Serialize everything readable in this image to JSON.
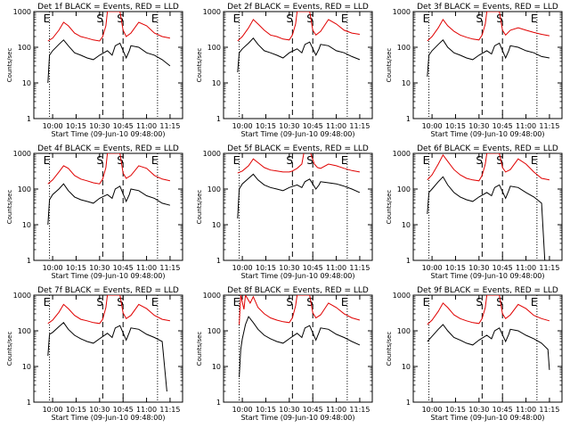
{
  "figure": {
    "ylabel": "Counts/sec",
    "xlabel": "Start Time (09-Jun-10 09:48:00)",
    "xticks": [
      "10:00",
      "10:15",
      "10:30",
      "10:45",
      "11:00",
      "11:15"
    ],
    "xtick_minutes": [
      0,
      15,
      30,
      45,
      60,
      75
    ],
    "yticks": [
      "1",
      "10",
      "100",
      "1000"
    ],
    "yticks_values": [
      1,
      10,
      100,
      1000
    ],
    "colors": {
      "events": "#000000",
      "lld": "#e00000"
    },
    "markers": [
      {
        "label": "E",
        "minute": -2,
        "style": "dotted"
      },
      {
        "label": "S",
        "minute": 32,
        "style": "dashed"
      },
      {
        "label": "S",
        "minute": 45,
        "style": "dashed"
      },
      {
        "label": "E",
        "minute": 67,
        "style": "dotted"
      }
    ]
  },
  "chart_data": [
    {
      "type": "line",
      "title": "Det 1f BLACK = Events, RED = LLD",
      "xlim_minutes": [
        -12,
        83
      ],
      "ylim": [
        1,
        1000
      ],
      "yscale": "log",
      "series": [
        {
          "color": "#e00000",
          "x": [
            -3,
            0,
            4,
            7,
            10,
            14,
            18,
            22,
            26,
            30,
            32,
            34,
            35,
            37,
            40,
            43,
            45,
            47,
            50,
            55,
            60,
            65,
            70,
            75
          ],
          "values": [
            150,
            180,
            300,
            500,
            400,
            250,
            200,
            180,
            160,
            150,
            200,
            400,
            1000,
            1000,
            1000,
            1000,
            300,
            200,
            250,
            500,
            400,
            250,
            200,
            180
          ]
        },
        {
          "color": "#000000",
          "x": [
            -3,
            -2,
            0,
            4,
            7,
            10,
            14,
            18,
            22,
            26,
            30,
            35,
            38,
            40,
            43,
            47,
            49,
            50,
            55,
            60,
            65,
            70,
            75
          ],
          "values": [
            10,
            60,
            80,
            120,
            160,
            110,
            70,
            60,
            50,
            45,
            60,
            80,
            60,
            110,
            130,
            50,
            80,
            110,
            100,
            70,
            60,
            45,
            30
          ]
        }
      ]
    },
    {
      "type": "line",
      "title": "Det 2f BLACK = Events, RED = LLD",
      "xlim_minutes": [
        -12,
        83
      ],
      "ylim": [
        1,
        1000
      ],
      "yscale": "log",
      "series": [
        {
          "color": "#e00000",
          "x": [
            -3,
            0,
            4,
            7,
            10,
            14,
            18,
            22,
            26,
            30,
            32,
            34,
            35,
            37,
            40,
            43,
            45,
            47,
            50,
            55,
            60,
            65,
            70,
            75
          ],
          "values": [
            150,
            200,
            350,
            600,
            450,
            300,
            220,
            200,
            170,
            160,
            220,
            450,
            1000,
            1000,
            1000,
            1000,
            300,
            220,
            280,
            600,
            450,
            300,
            250,
            230
          ]
        },
        {
          "color": "#000000",
          "x": [
            -3,
            -2,
            0,
            4,
            7,
            10,
            14,
            18,
            22,
            26,
            30,
            35,
            38,
            40,
            43,
            47,
            49,
            50,
            55,
            60,
            65,
            70,
            75
          ],
          "values": [
            20,
            70,
            90,
            130,
            180,
            120,
            80,
            70,
            60,
            50,
            70,
            90,
            70,
            120,
            140,
            60,
            90,
            120,
            110,
            80,
            70,
            55,
            45
          ]
        }
      ]
    },
    {
      "type": "line",
      "title": "Det 3f BLACK = Events, RED = LLD",
      "xlim_minutes": [
        -12,
        83
      ],
      "ylim": [
        1,
        1000
      ],
      "yscale": "log",
      "series": [
        {
          "color": "#e00000",
          "x": [
            -3,
            0,
            4,
            7,
            10,
            14,
            18,
            22,
            26,
            30,
            32,
            34,
            35,
            37,
            40,
            43,
            45,
            47,
            50,
            55,
            60,
            65,
            70,
            75
          ],
          "values": [
            150,
            200,
            350,
            600,
            400,
            280,
            220,
            190,
            170,
            160,
            220,
            450,
            1000,
            1000,
            1000,
            1000,
            300,
            220,
            300,
            350,
            300,
            260,
            230,
            210
          ]
        },
        {
          "color": "#000000",
          "x": [
            -3,
            -2,
            0,
            4,
            7,
            10,
            14,
            18,
            22,
            26,
            30,
            35,
            38,
            40,
            43,
            47,
            49,
            50,
            55,
            60,
            65,
            70,
            75
          ],
          "values": [
            15,
            60,
            80,
            120,
            160,
            100,
            70,
            60,
            50,
            45,
            60,
            80,
            65,
            110,
            130,
            50,
            80,
            110,
            100,
            80,
            70,
            55,
            50
          ]
        }
      ]
    },
    {
      "type": "line",
      "title": "Det 4f BLACK = Events, RED = LLD",
      "xlim_minutes": [
        -12,
        83
      ],
      "ylim": [
        1,
        1000
      ],
      "yscale": "log",
      "series": [
        {
          "color": "#e00000",
          "x": [
            -3,
            0,
            4,
            7,
            10,
            14,
            18,
            22,
            26,
            30,
            32,
            34,
            35,
            37,
            40,
            43,
            45,
            47,
            50,
            55,
            60,
            65,
            70,
            75
          ],
          "values": [
            140,
            180,
            300,
            450,
            380,
            240,
            190,
            170,
            150,
            140,
            190,
            400,
            1000,
            1000,
            1000,
            1000,
            280,
            200,
            240,
            450,
            380,
            240,
            190,
            170
          ]
        },
        {
          "color": "#000000",
          "x": [
            -3,
            -2,
            0,
            4,
            7,
            10,
            14,
            18,
            22,
            26,
            30,
            35,
            38,
            40,
            43,
            47,
            49,
            50,
            55,
            60,
            65,
            70,
            75
          ],
          "values": [
            10,
            50,
            70,
            100,
            140,
            90,
            60,
            50,
            45,
            40,
            55,
            70,
            55,
            100,
            120,
            45,
            70,
            100,
            90,
            65,
            55,
            40,
            35
          ]
        }
      ]
    },
    {
      "type": "line",
      "title": "Det 5f BLACK = Events, RED = LLD",
      "xlim_minutes": [
        -12,
        83
      ],
      "ylim": [
        1,
        1000
      ],
      "yscale": "log",
      "series": [
        {
          "color": "#e00000",
          "x": [
            -3,
            0,
            4,
            7,
            10,
            14,
            18,
            22,
            26,
            30,
            32,
            35,
            38,
            40,
            42,
            44,
            46,
            48,
            50,
            55,
            60,
            65,
            70,
            75
          ],
          "values": [
            280,
            320,
            450,
            700,
            550,
            400,
            340,
            320,
            300,
            300,
            320,
            380,
            500,
            1500,
            2000,
            900,
            500,
            400,
            380,
            500,
            450,
            380,
            330,
            300
          ]
        },
        {
          "color": "#000000",
          "x": [
            -3,
            -2,
            0,
            4,
            7,
            10,
            14,
            18,
            22,
            26,
            30,
            35,
            38,
            40,
            43,
            47,
            49,
            50,
            55,
            60,
            65,
            70,
            75
          ],
          "values": [
            15,
            100,
            140,
            200,
            260,
            180,
            130,
            110,
            100,
            90,
            110,
            130,
            110,
            160,
            190,
            100,
            130,
            160,
            150,
            140,
            120,
            100,
            80
          ]
        }
      ]
    },
    {
      "type": "line",
      "title": "Det 6f BLACK = Events, RED = LLD",
      "xlim_minutes": [
        -12,
        83
      ],
      "ylim": [
        1,
        1000
      ],
      "yscale": "log",
      "series": [
        {
          "color": "#e00000",
          "x": [
            -3,
            0,
            4,
            7,
            10,
            14,
            18,
            22,
            26,
            30,
            32,
            34,
            35,
            37,
            40,
            43,
            45,
            47,
            50,
            55,
            60,
            65,
            70,
            75
          ],
          "values": [
            180,
            250,
            500,
            900,
            600,
            350,
            250,
            200,
            180,
            170,
            240,
            500,
            1000,
            1000,
            1000,
            1000,
            400,
            300,
            350,
            700,
            500,
            300,
            200,
            180
          ]
        },
        {
          "color": "#000000",
          "x": [
            -3,
            -2,
            0,
            4,
            7,
            10,
            14,
            18,
            22,
            26,
            30,
            35,
            38,
            40,
            43,
            47,
            49,
            50,
            55,
            60,
            65,
            70,
            72
          ],
          "values": [
            20,
            80,
            100,
            160,
            220,
            130,
            80,
            60,
            50,
            45,
            60,
            80,
            65,
            110,
            130,
            55,
            90,
            120,
            110,
            80,
            60,
            40,
            1
          ]
        }
      ]
    },
    {
      "type": "line",
      "title": "Det 7f BLACK = Events, RED = LLD",
      "xlim_minutes": [
        -12,
        83
      ],
      "ylim": [
        1,
        1000
      ],
      "yscale": "log",
      "series": [
        {
          "color": "#e00000",
          "x": [
            -3,
            0,
            4,
            7,
            10,
            14,
            18,
            22,
            26,
            30,
            32,
            34,
            35,
            37,
            40,
            43,
            45,
            47,
            50,
            55,
            60,
            65,
            70,
            75
          ],
          "values": [
            160,
            200,
            330,
            550,
            420,
            270,
            210,
            190,
            170,
            160,
            210,
            450,
            1000,
            1000,
            1000,
            1000,
            320,
            220,
            270,
            550,
            420,
            270,
            210,
            190
          ]
        },
        {
          "color": "#000000",
          "x": [
            -3,
            -2,
            0,
            4,
            7,
            10,
            14,
            18,
            22,
            26,
            30,
            35,
            38,
            40,
            43,
            47,
            49,
            50,
            55,
            60,
            65,
            70,
            73
          ],
          "values": [
            20,
            80,
            90,
            130,
            170,
            110,
            75,
            60,
            50,
            45,
            60,
            85,
            65,
            120,
            140,
            55,
            90,
            120,
            110,
            80,
            65,
            50,
            2
          ]
        }
      ]
    },
    {
      "type": "line",
      "title": "Det 8f BLACK = Events, RED = LLD",
      "xlim_minutes": [
        -12,
        83
      ],
      "ylim": [
        1,
        1000
      ],
      "yscale": "log",
      "series": [
        {
          "color": "#e00000",
          "x": [
            -2,
            -1,
            1,
            2,
            5,
            7,
            10,
            14,
            18,
            22,
            26,
            30,
            32,
            34,
            35,
            37,
            40,
            43,
            45,
            47,
            50,
            55,
            60,
            65,
            70,
            75
          ],
          "values": [
            150,
            1000,
            400,
            1000,
            600,
            900,
            450,
            300,
            230,
            200,
            180,
            170,
            230,
            500,
            1000,
            1000,
            1000,
            1000,
            320,
            230,
            280,
            600,
            450,
            300,
            230,
            200
          ]
        },
        {
          "color": "#000000",
          "x": [
            -2,
            -1,
            0,
            2,
            4,
            7,
            10,
            14,
            18,
            22,
            26,
            30,
            35,
            38,
            40,
            43,
            47,
            49,
            50,
            55,
            60,
            65,
            70,
            75
          ],
          "values": [
            5,
            30,
            60,
            150,
            250,
            170,
            110,
            75,
            60,
            50,
            45,
            60,
            85,
            65,
            120,
            140,
            55,
            90,
            120,
            110,
            80,
            65,
            50,
            40
          ]
        }
      ]
    },
    {
      "type": "line",
      "title": "Det 9f BLACK = Events, RED = LLD",
      "xlim_minutes": [
        -12,
        83
      ],
      "ylim": [
        1,
        1000
      ],
      "yscale": "log",
      "series": [
        {
          "color": "#e00000",
          "x": [
            -3,
            0,
            4,
            7,
            10,
            14,
            18,
            22,
            26,
            30,
            32,
            34,
            35,
            37,
            40,
            43,
            45,
            47,
            50,
            55,
            60,
            65,
            70,
            75
          ],
          "values": [
            150,
            200,
            350,
            600,
            450,
            280,
            220,
            190,
            170,
            160,
            220,
            450,
            1000,
            1000,
            1000,
            1000,
            300,
            220,
            280,
            550,
            420,
            270,
            220,
            190
          ]
        },
        {
          "color": "#000000",
          "x": [
            -3,
            0,
            4,
            7,
            10,
            14,
            18,
            22,
            26,
            30,
            35,
            38,
            40,
            43,
            47,
            49,
            50,
            55,
            60,
            65,
            70,
            74,
            75
          ],
          "values": [
            50,
            70,
            110,
            150,
            100,
            65,
            55,
            45,
            40,
            55,
            75,
            60,
            100,
            120,
            50,
            80,
            110,
            100,
            75,
            60,
            45,
            30,
            8
          ]
        }
      ]
    }
  ]
}
